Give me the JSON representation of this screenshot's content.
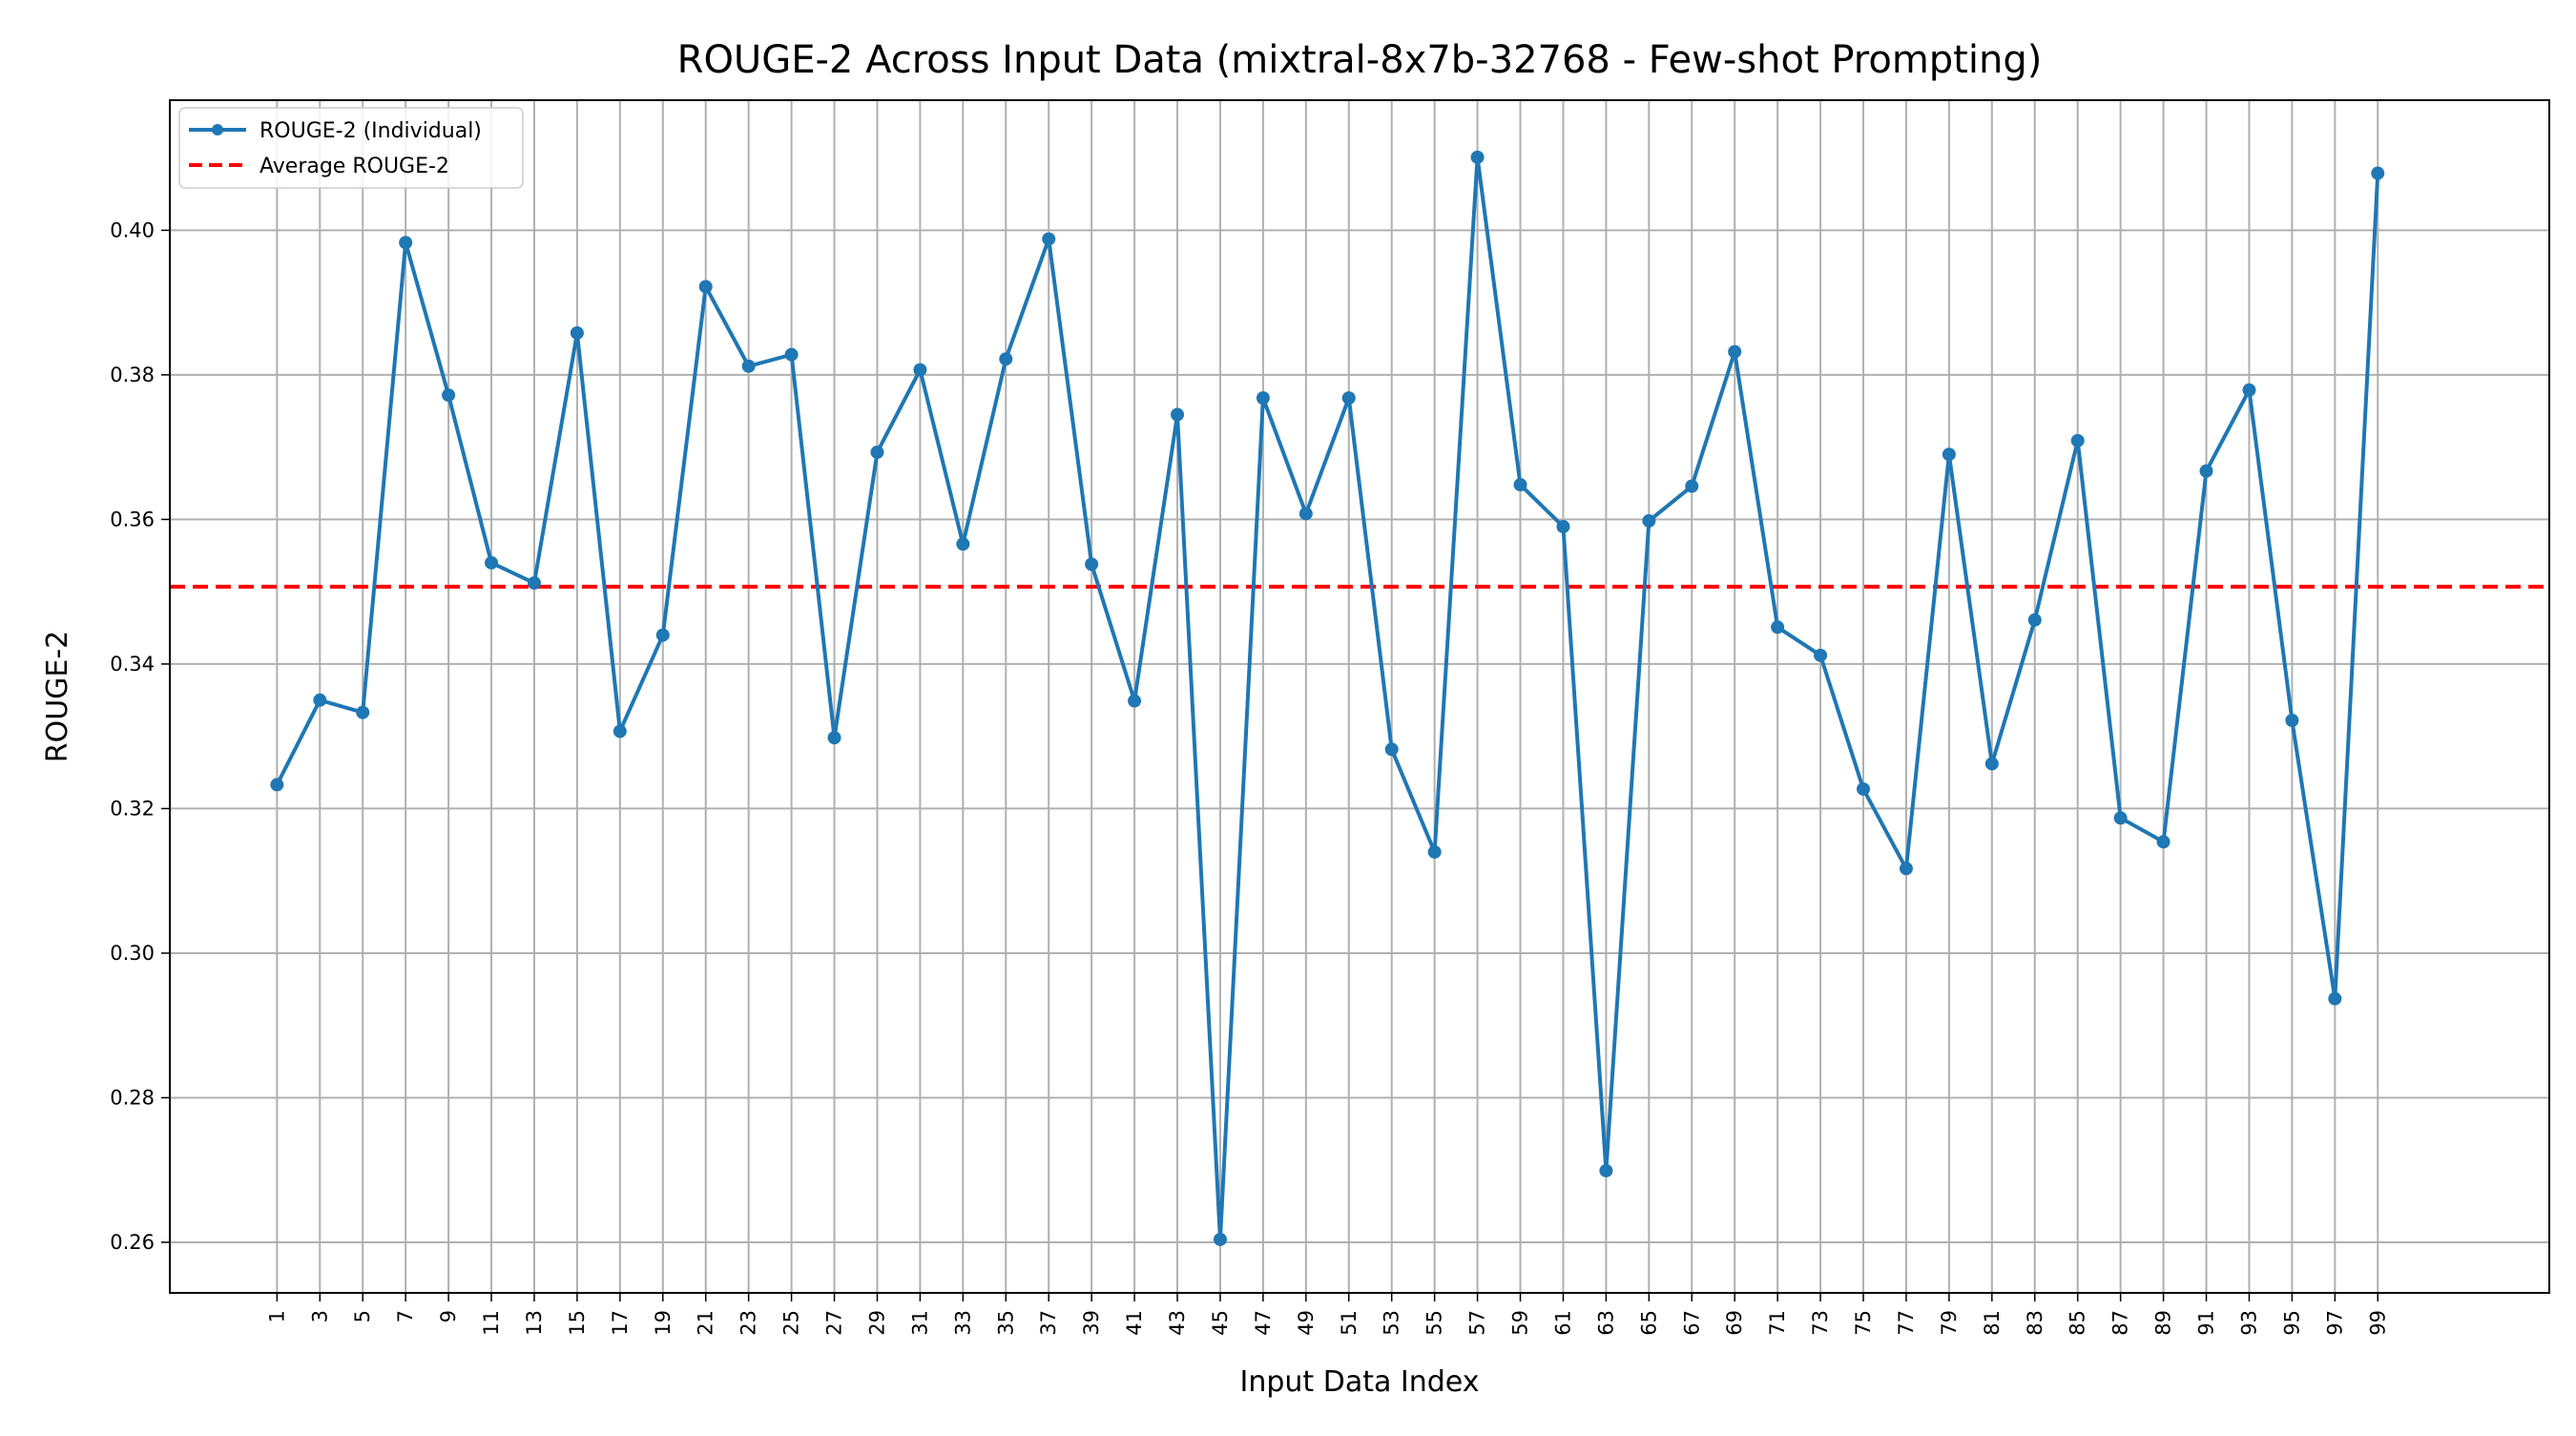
{
  "chart_data": {
    "type": "line",
    "title": "ROUGE-2 Across Input Data (mixtral-8x7b-32768 - Few-shot Prompting)",
    "xlabel": "Input Data Index",
    "ylabel": "ROUGE-2",
    "x": [
      1,
      3,
      5,
      7,
      9,
      11,
      13,
      15,
      17,
      19,
      21,
      23,
      25,
      27,
      29,
      31,
      33,
      35,
      37,
      39,
      41,
      43,
      45,
      47,
      49,
      51,
      53,
      55,
      57,
      59,
      61,
      63,
      65,
      67,
      69,
      71,
      73,
      75,
      77,
      79,
      81,
      83,
      85,
      87,
      89,
      91,
      93,
      95,
      97,
      99
    ],
    "series": [
      {
        "name": "ROUGE-2 (Individual)",
        "color": "#1f77b4",
        "values": [
          0.3233,
          0.335,
          0.3333,
          0.3983,
          0.3772,
          0.354,
          0.3512,
          0.3858,
          0.3307,
          0.344,
          0.3922,
          0.3812,
          0.3828,
          0.3298,
          0.3693,
          0.3807,
          0.3566,
          0.3822,
          0.3988,
          0.3538,
          0.3349,
          0.3745,
          0.2604,
          0.3768,
          0.3608,
          0.3768,
          0.3282,
          0.314,
          0.4101,
          0.3648,
          0.359,
          0.2699,
          0.3598,
          0.3646,
          0.3832,
          0.3451,
          0.3412,
          0.3227,
          0.3117,
          0.369,
          0.3262,
          0.3461,
          0.3709,
          0.3187,
          0.3154,
          0.3667,
          0.3779,
          0.3322,
          0.2937,
          0.4079
        ]
      }
    ],
    "average": {
      "name": "Average ROUGE-2",
      "value": 0.3507,
      "color": "#ff0000"
    },
    "x_ticks": [
      "1",
      "3",
      "5",
      "7",
      "9",
      "11",
      "13",
      "15",
      "17",
      "19",
      "21",
      "23",
      "25",
      "27",
      "29",
      "31",
      "33",
      "35",
      "37",
      "39",
      "41",
      "43",
      "45",
      "47",
      "49",
      "51",
      "53",
      "55",
      "57",
      "59",
      "61",
      "63",
      "65",
      "67",
      "69",
      "71",
      "73",
      "75",
      "77",
      "79",
      "81",
      "83",
      "85",
      "87",
      "89",
      "91",
      "93",
      "95",
      "97",
      "99"
    ],
    "y_ticks": [
      "0.26",
      "0.28",
      "0.30",
      "0.32",
      "0.34",
      "0.36",
      "0.38",
      "0.40"
    ],
    "y_tick_values": [
      0.26,
      0.28,
      0.3,
      0.32,
      0.34,
      0.36,
      0.38,
      0.4
    ],
    "xlim": [
      -4.0,
      107.0
    ],
    "ylim": [
      0.253,
      0.418
    ],
    "grid": true,
    "legend_position": "top-left"
  }
}
